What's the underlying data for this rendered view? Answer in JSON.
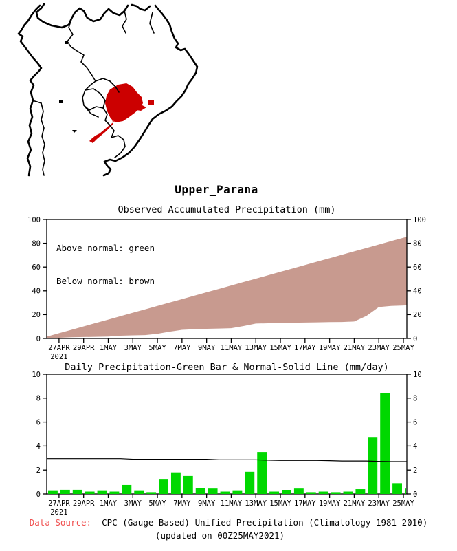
{
  "region_title": "Upper_Parana",
  "map": {
    "name": "South America region map",
    "highlighted_region": "Upper_Parana",
    "highlight_color": "#cc0000",
    "outline_color": "#000000"
  },
  "colors": {
    "below_normal_fill": "#c89a8f",
    "bar_green": "#00d800",
    "axis": "#000000",
    "footer_label_red": "#f05050"
  },
  "footer": {
    "label": "Data Source:",
    "text": "  CPC (Gauge-Based) Unified Precipitation (Climatology 1981-2010)",
    "updated": "(updated on 00Z25MAY2021)"
  },
  "chart_data": [
    {
      "type": "area",
      "title": "Observed Accumulated Precipitation (mm)",
      "legend": [
        "Above normal: green",
        "Below normal: brown"
      ],
      "legend_note": "fill shown is brown because observed is below normal",
      "ylim": [
        0,
        100
      ],
      "y_ticks": [
        0,
        20,
        40,
        60,
        80,
        100
      ],
      "x": [
        "26APR",
        "27APR",
        "28APR",
        "29APR",
        "30APR",
        "1MAY",
        "2MAY",
        "3MAY",
        "4MAY",
        "5MAY",
        "6MAY",
        "7MAY",
        "8MAY",
        "9MAY",
        "10MAY",
        "11MAY",
        "12MAY",
        "13MAY",
        "14MAY",
        "15MAY",
        "16MAY",
        "17MAY",
        "18MAY",
        "19MAY",
        "20MAY",
        "21MAY",
        "22MAY",
        "23MAY",
        "24MAY",
        "25MAY"
      ],
      "x_tick_labels": [
        "27APR",
        "29APR",
        "1MAY",
        "3MAY",
        "5MAY",
        "7MAY",
        "9MAY",
        "11MAY",
        "13MAY",
        "15MAY",
        "17MAY",
        "19MAY",
        "21MAY",
        "23MAY",
        "25MAY"
      ],
      "year": "2021",
      "series": [
        {
          "name": "normal_accumulated_mm",
          "values": [
            1.5,
            4.4,
            7.2,
            10.1,
            13.0,
            15.8,
            18.7,
            21.6,
            24.4,
            27.3,
            30.2,
            33.0,
            35.9,
            38.8,
            41.6,
            44.5,
            47.4,
            50.2,
            53.1,
            56.0,
            58.8,
            61.7,
            64.6,
            67.4,
            70.3,
            73.2,
            76.0,
            78.9,
            81.8,
            84.6
          ]
        },
        {
          "name": "observed_accumulated_mm",
          "values": [
            0.3,
            0.6,
            1.0,
            1.2,
            1.4,
            1.6,
            2.3,
            2.6,
            2.8,
            3.9,
            5.7,
            7.2,
            7.7,
            8.1,
            8.3,
            8.6,
            10.4,
            12.5,
            12.7,
            12.9,
            13.2,
            13.4,
            13.5,
            13.7,
            13.8,
            14.2,
            18.9,
            26.4,
            27.3,
            27.7
          ]
        }
      ]
    },
    {
      "type": "bar",
      "title": "Daily Precipitation-Green Bar & Normal-Solid Line (mm/day)",
      "ylim": [
        0,
        10
      ],
      "y_ticks": [
        0,
        2,
        4,
        6,
        8,
        10
      ],
      "x": [
        "26APR",
        "27APR",
        "28APR",
        "29APR",
        "30APR",
        "1MAY",
        "2MAY",
        "3MAY",
        "4MAY",
        "5MAY",
        "6MAY",
        "7MAY",
        "8MAY",
        "9MAY",
        "10MAY",
        "11MAY",
        "12MAY",
        "13MAY",
        "14MAY",
        "15MAY",
        "16MAY",
        "17MAY",
        "18MAY",
        "19MAY",
        "20MAY",
        "21MAY",
        "22MAY",
        "23MAY",
        "24MAY",
        "25MAY"
      ],
      "x_tick_labels": [
        "27APR",
        "29APR",
        "1MAY",
        "3MAY",
        "5MAY",
        "7MAY",
        "9MAY",
        "11MAY",
        "13MAY",
        "15MAY",
        "17MAY",
        "19MAY",
        "21MAY",
        "23MAY",
        "25MAY"
      ],
      "year": "2021",
      "series": [
        {
          "name": "daily_precipitation_mm",
          "type": "bar",
          "values": [
            0.25,
            0.35,
            0.35,
            0.2,
            0.25,
            0.2,
            0.75,
            0.25,
            0.15,
            1.2,
            1.8,
            1.5,
            0.5,
            0.45,
            0.2,
            0.25,
            1.85,
            3.5,
            0.2,
            0.3,
            0.45,
            0.15,
            0.2,
            0.15,
            0.2,
            0.4,
            4.7,
            8.4,
            0.9,
            0.45
          ]
        },
        {
          "name": "normal_mm_per_day",
          "type": "line",
          "values": [
            2.95,
            2.95,
            2.95,
            2.95,
            2.95,
            2.95,
            2.95,
            2.9,
            2.9,
            2.9,
            2.9,
            2.9,
            2.9,
            2.9,
            2.85,
            2.85,
            2.85,
            2.85,
            2.82,
            2.8,
            2.8,
            2.8,
            2.8,
            2.78,
            2.75,
            2.75,
            2.75,
            2.72,
            2.7,
            2.7
          ]
        }
      ]
    }
  ]
}
